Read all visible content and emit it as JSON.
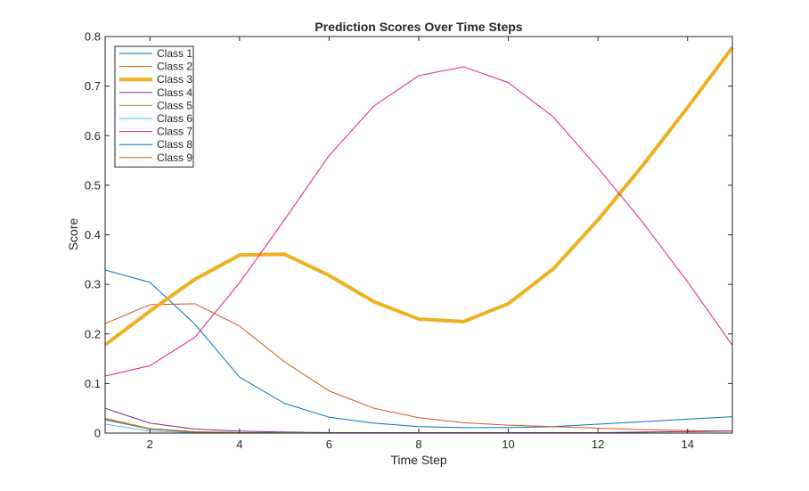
{
  "chart_data": {
    "type": "line",
    "title": "Prediction Scores Over Time Steps",
    "xlabel": "Time Step",
    "ylabel": "Score",
    "xlim": [
      1,
      15
    ],
    "ylim": [
      0,
      0.8
    ],
    "xticks": [
      2,
      4,
      6,
      8,
      10,
      12,
      14
    ],
    "yticks": [
      0,
      0.1,
      0.2,
      0.3,
      0.4,
      0.5,
      0.6,
      0.7,
      0.8
    ],
    "ytick_labels": [
      "0",
      "0.1",
      "0.2",
      "0.3",
      "0.4",
      "0.5",
      "0.6",
      "0.7",
      "0.8"
    ],
    "grid": false,
    "legend_position": "top-left",
    "x": [
      1,
      2,
      3,
      4,
      5,
      6,
      7,
      8,
      9,
      10,
      11,
      12,
      13,
      14,
      15
    ],
    "series": [
      {
        "name": "Class 1",
        "color": "#0072BD",
        "width": 1,
        "values": [
          0.329,
          0.304,
          0.22,
          0.113,
          0.06,
          0.032,
          0.02,
          0.013,
          0.011,
          0.011,
          0.013,
          0.018,
          0.023,
          0.028,
          0.033
        ]
      },
      {
        "name": "Class 2",
        "color": "#D95319",
        "width": 1,
        "values": [
          0.221,
          0.259,
          0.261,
          0.216,
          0.144,
          0.085,
          0.05,
          0.031,
          0.021,
          0.016,
          0.013,
          0.01,
          0.007,
          0.005,
          0.004
        ]
      },
      {
        "name": "Class 3",
        "color": "#EDB120",
        "width": 4,
        "values": [
          0.178,
          0.246,
          0.31,
          0.359,
          0.361,
          0.318,
          0.265,
          0.23,
          0.225,
          0.261,
          0.331,
          0.43,
          0.54,
          0.657,
          0.778
        ]
      },
      {
        "name": "Class 4",
        "color": "#7E2F8E",
        "width": 1,
        "values": [
          0.05,
          0.02,
          0.008,
          0.004,
          0.002,
          0.001,
          0.001,
          0.001,
          0.001,
          0.001,
          0.001,
          0.001,
          0.002,
          0.003,
          0.004
        ]
      },
      {
        "name": "Class 5",
        "color": "#77AC30",
        "width": 1,
        "values": [
          0.03,
          0.009,
          0.003,
          0.001,
          0.001,
          0.0,
          0.0,
          0.0,
          0.0,
          0.0,
          0.0,
          0.0,
          0.0,
          0.0,
          0.0
        ]
      },
      {
        "name": "Class 6",
        "color": "#4DBEEE",
        "width": 1,
        "values": [
          0.018,
          0.004,
          0.001,
          0.0,
          0.0,
          0.0,
          0.0,
          0.0,
          0.0,
          0.0,
          0.0,
          0.0,
          0.0,
          0.0,
          0.0
        ]
      },
      {
        "name": "Class 7",
        "color": "#E7198C",
        "width": 1,
        "values": [
          0.115,
          0.136,
          0.193,
          0.303,
          0.43,
          0.56,
          0.66,
          0.721,
          0.739,
          0.707,
          0.638,
          0.535,
          0.425,
          0.305,
          0.177
        ]
      },
      {
        "name": "Class 8",
        "color": "#0072BD",
        "width": 1,
        "values": [
          0.027,
          0.008,
          0.002,
          0.001,
          0.0,
          0.0,
          0.0,
          0.0,
          0.0,
          0.0,
          0.0,
          0.0,
          0.0,
          0.0,
          0.0
        ]
      },
      {
        "name": "Class 9",
        "color": "#D95319",
        "width": 1,
        "values": [
          0.028,
          0.008,
          0.002,
          0.001,
          0.0,
          0.0,
          0.0,
          0.0,
          0.0,
          0.0,
          0.0,
          0.0,
          0.0,
          0.0,
          0.0
        ]
      }
    ]
  }
}
